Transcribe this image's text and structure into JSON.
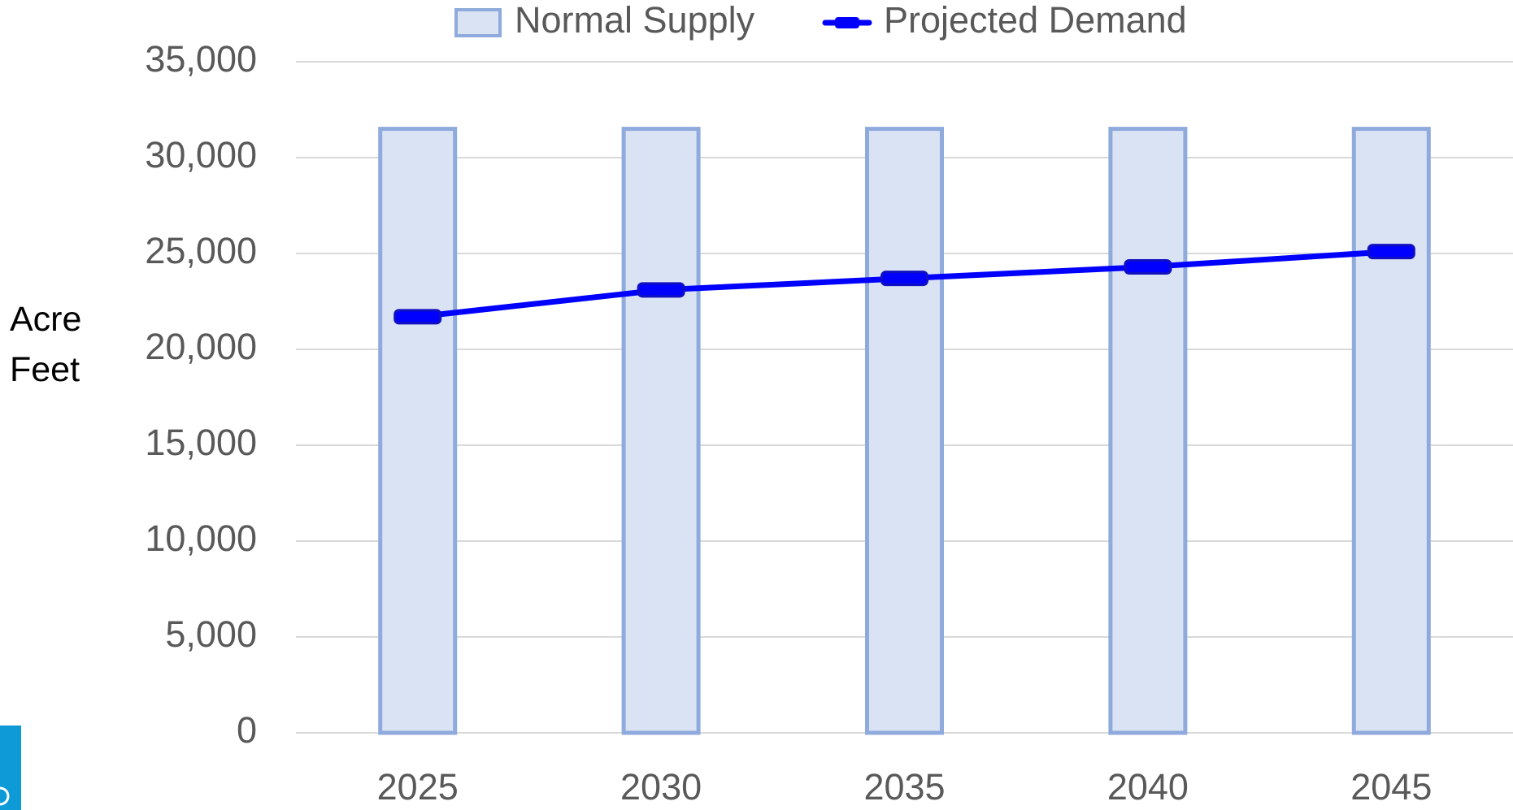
{
  "chart_data": {
    "type": "bar_line",
    "y_axis_label": "Acre Feet",
    "categories": [
      "2025",
      "2030",
      "2035",
      "2040",
      "2045"
    ],
    "series": [
      {
        "name": "Normal Supply",
        "type": "bar",
        "color": "#dae3f3",
        "edge_color": "#8faadc",
        "values": [
          31500,
          31500,
          31500,
          31500,
          31500
        ]
      },
      {
        "name": "Projected Demand",
        "type": "line",
        "color": "#0000ff",
        "values": [
          21700,
          23100,
          23700,
          24300,
          25100
        ]
      }
    ],
    "ylim": [
      0,
      35000
    ],
    "yticks": [
      0,
      {
        "value": 5000,
        "label": "5,000"
      },
      {
        "value": 10000,
        "label": "10,000"
      },
      {
        "value": 15000,
        "label": "15,000"
      },
      {
        "value": 20000,
        "label": "20,000"
      },
      {
        "value": 25000,
        "label": "25,000"
      },
      {
        "value": 30000,
        "label": "30,000"
      },
      {
        "value": 35000,
        "label": "35,000"
      }
    ],
    "grid": true,
    "legend": "top"
  }
}
